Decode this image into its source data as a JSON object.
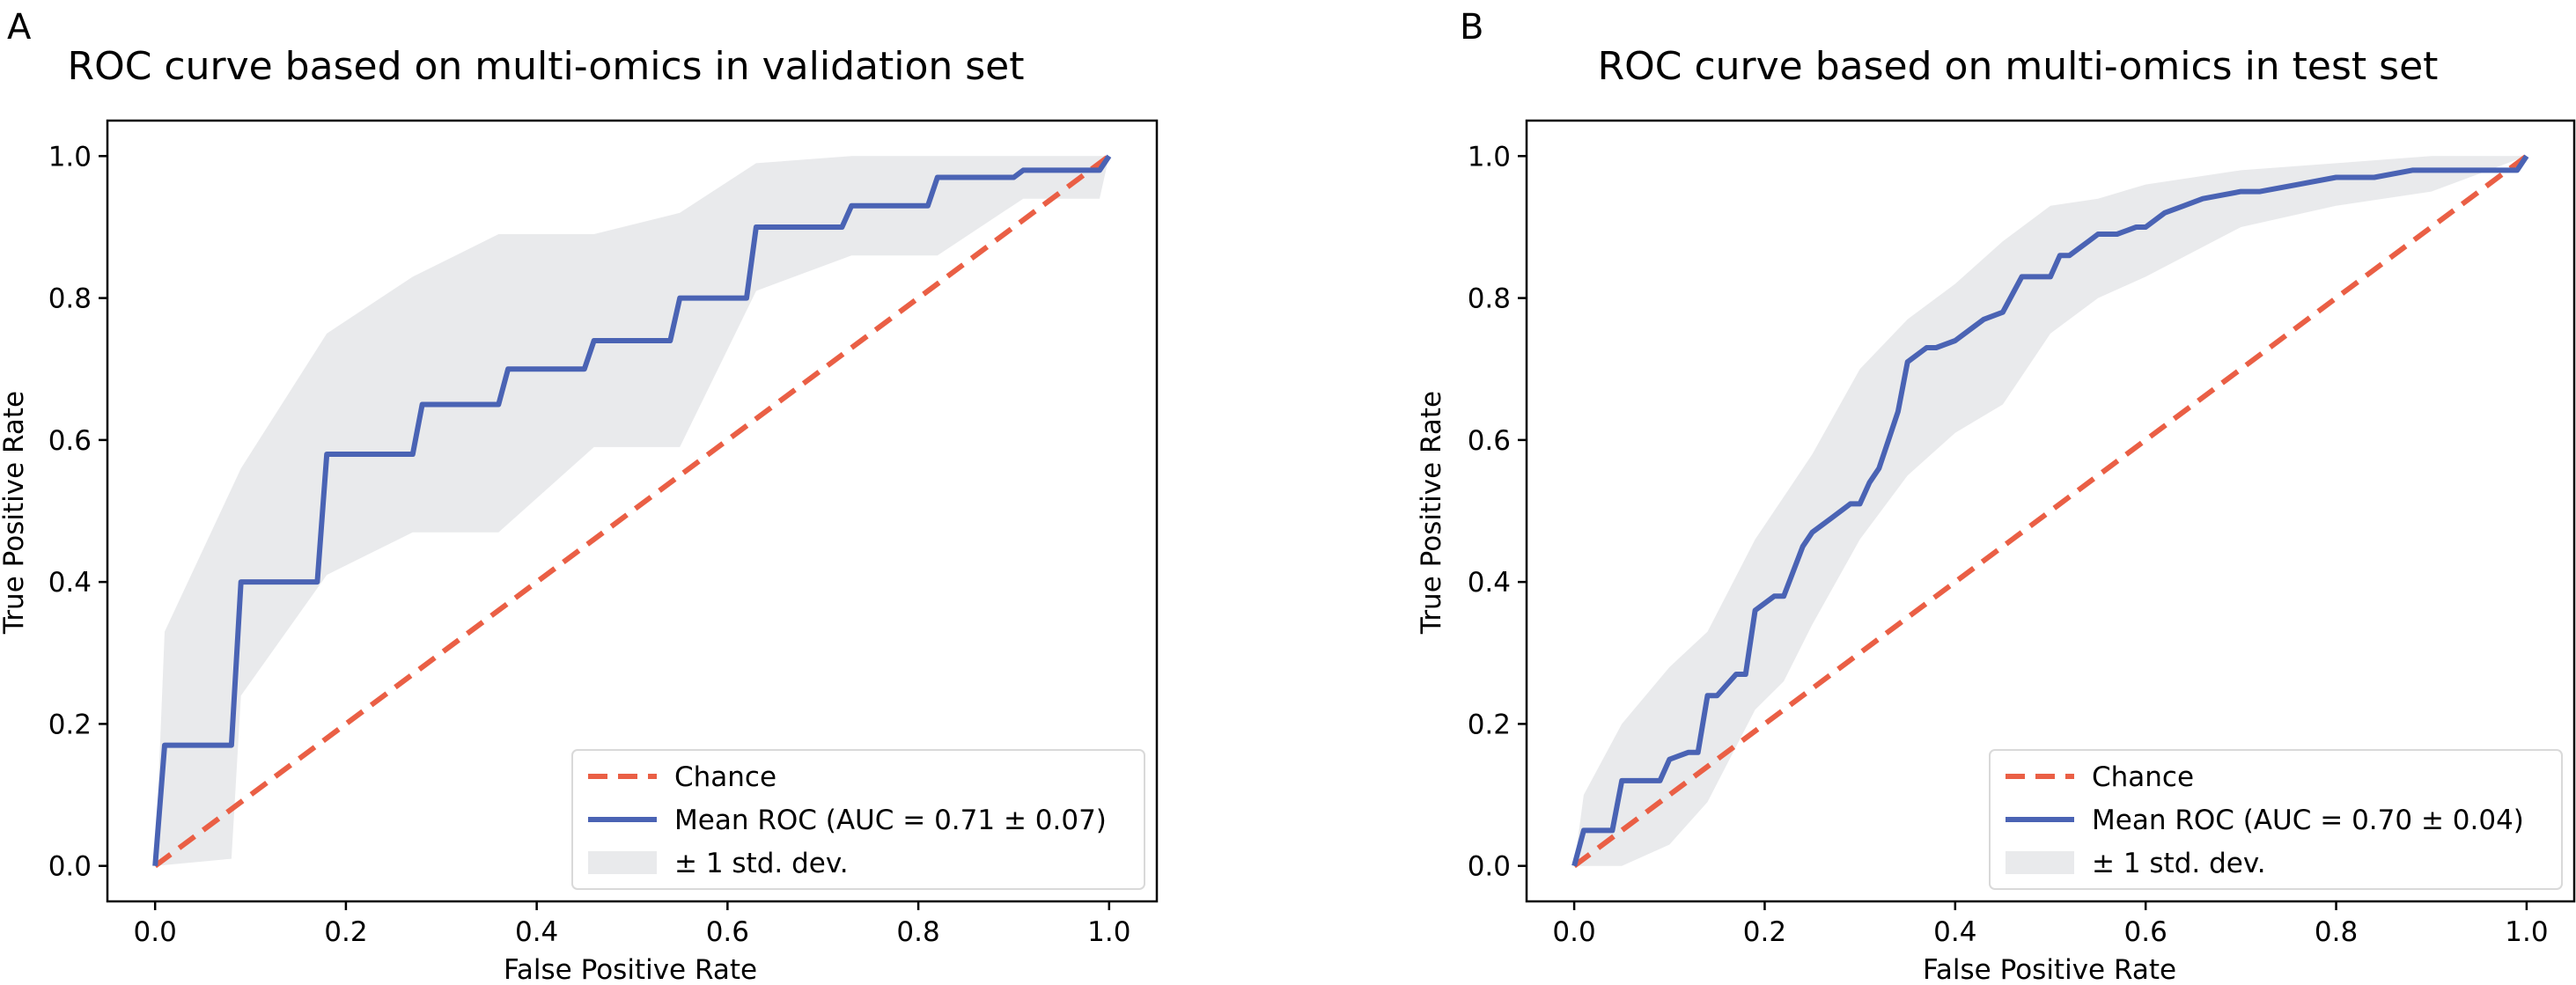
{
  "chart_data": [
    {
      "panel": "A",
      "type": "line",
      "title": "ROC curve based on multi-omics in validation set",
      "xlabel": "False Positive Rate",
      "ylabel": "True Positive Rate",
      "xlim": [
        -0.05,
        1.05
      ],
      "ylim": [
        -0.05,
        1.05
      ],
      "xticks": [
        "0.0",
        "0.2",
        "0.4",
        "0.6",
        "0.8",
        "1.0"
      ],
      "yticks": [
        "0.0",
        "0.2",
        "0.4",
        "0.6",
        "0.8",
        "1.0"
      ],
      "legend_position": "lower-right",
      "legend": [
        "Chance",
        "Mean ROC (AUC = 0.71 ± 0.07)",
        "± 1 std. dev."
      ],
      "colors": {
        "chance": "#ea5f45",
        "mean": "#4a63b4",
        "band": "#e9eaec"
      },
      "chance": {
        "x": [
          0,
          1
        ],
        "y": [
          0,
          1
        ]
      },
      "mean_roc": {
        "x": [
          0,
          0.01,
          0.08,
          0.09,
          0.17,
          0.18,
          0.27,
          0.28,
          0.36,
          0.37,
          0.45,
          0.46,
          0.54,
          0.55,
          0.62,
          0.63,
          0.72,
          0.73,
          0.81,
          0.82,
          0.9,
          0.91,
          0.99,
          1.0
        ],
        "y": [
          0,
          0.17,
          0.17,
          0.4,
          0.4,
          0.58,
          0.58,
          0.65,
          0.65,
          0.7,
          0.7,
          0.74,
          0.74,
          0.8,
          0.8,
          0.9,
          0.9,
          0.93,
          0.93,
          0.97,
          0.97,
          0.98,
          0.98,
          1.0
        ]
      },
      "std_band": {
        "upper": {
          "x": [
            0,
            0.01,
            0.09,
            0.18,
            0.27,
            0.36,
            0.46,
            0.55,
            0.63,
            0.73,
            0.82,
            1.0
          ],
          "y": [
            0,
            0.33,
            0.56,
            0.75,
            0.83,
            0.89,
            0.89,
            0.92,
            0.99,
            1.0,
            1.0,
            1.0
          ]
        },
        "lower": {
          "x": [
            0,
            0.08,
            0.09,
            0.18,
            0.27,
            0.36,
            0.46,
            0.55,
            0.63,
            0.73,
            0.82,
            0.91,
            0.99,
            1.0
          ],
          "y": [
            0,
            0.01,
            0.24,
            0.41,
            0.47,
            0.47,
            0.59,
            0.59,
            0.81,
            0.86,
            0.86,
            0.94,
            0.94,
            1.0
          ]
        }
      }
    },
    {
      "panel": "B",
      "type": "line",
      "title": "ROC curve based on multi-omics in test set",
      "xlabel": "False Positive Rate",
      "ylabel": "True Positive Rate",
      "xlim": [
        -0.05,
        1.05
      ],
      "ylim": [
        -0.05,
        1.05
      ],
      "xticks": [
        "0.0",
        "0.2",
        "0.4",
        "0.6",
        "0.8",
        "1.0"
      ],
      "yticks": [
        "0.0",
        "0.2",
        "0.4",
        "0.6",
        "0.8",
        "1.0"
      ],
      "legend_position": "lower-right",
      "legend": [
        "Chance",
        "Mean ROC (AUC = 0.70 ± 0.04)",
        "± 1 std. dev."
      ],
      "colors": {
        "chance": "#ea5f45",
        "mean": "#4a63b4",
        "band": "#e9eaec"
      },
      "chance": {
        "x": [
          0,
          1
        ],
        "y": [
          0,
          1
        ]
      },
      "mean_roc": {
        "x": [
          0,
          0.01,
          0.04,
          0.05,
          0.09,
          0.1,
          0.12,
          0.13,
          0.14,
          0.15,
          0.17,
          0.18,
          0.19,
          0.21,
          0.22,
          0.24,
          0.25,
          0.27,
          0.29,
          0.3,
          0.31,
          0.32,
          0.33,
          0.34,
          0.35,
          0.37,
          0.38,
          0.4,
          0.42,
          0.43,
          0.45,
          0.47,
          0.48,
          0.5,
          0.51,
          0.52,
          0.54,
          0.55,
          0.57,
          0.59,
          0.6,
          0.62,
          0.64,
          0.66,
          0.7,
          0.72,
          0.76,
          0.8,
          0.84,
          0.88,
          0.95,
          0.99,
          1.0
        ],
        "y": [
          0,
          0.05,
          0.05,
          0.12,
          0.12,
          0.15,
          0.16,
          0.16,
          0.24,
          0.24,
          0.27,
          0.27,
          0.36,
          0.38,
          0.38,
          0.45,
          0.47,
          0.49,
          0.51,
          0.51,
          0.54,
          0.56,
          0.6,
          0.64,
          0.71,
          0.73,
          0.73,
          0.74,
          0.76,
          0.77,
          0.78,
          0.83,
          0.83,
          0.83,
          0.86,
          0.86,
          0.88,
          0.89,
          0.89,
          0.9,
          0.9,
          0.92,
          0.93,
          0.94,
          0.95,
          0.95,
          0.96,
          0.97,
          0.97,
          0.98,
          0.98,
          0.98,
          1.0
        ]
      },
      "std_band": {
        "upper": {
          "x": [
            0,
            0.01,
            0.05,
            0.1,
            0.14,
            0.19,
            0.22,
            0.25,
            0.3,
            0.35,
            0.4,
            0.45,
            0.5,
            0.55,
            0.6,
            0.7,
            0.8,
            0.9,
            1.0
          ],
          "y": [
            0,
            0.1,
            0.2,
            0.28,
            0.33,
            0.46,
            0.52,
            0.58,
            0.7,
            0.77,
            0.82,
            0.88,
            0.93,
            0.94,
            0.96,
            0.98,
            0.99,
            1.0,
            1.0
          ]
        },
        "lower": {
          "x": [
            0,
            0.05,
            0.1,
            0.14,
            0.19,
            0.22,
            0.25,
            0.3,
            0.35,
            0.4,
            0.45,
            0.5,
            0.55,
            0.6,
            0.7,
            0.8,
            0.9,
            1.0
          ],
          "y": [
            0,
            0.0,
            0.03,
            0.09,
            0.22,
            0.26,
            0.34,
            0.46,
            0.55,
            0.61,
            0.65,
            0.75,
            0.8,
            0.83,
            0.9,
            0.93,
            0.95,
            1.0
          ]
        }
      }
    }
  ]
}
